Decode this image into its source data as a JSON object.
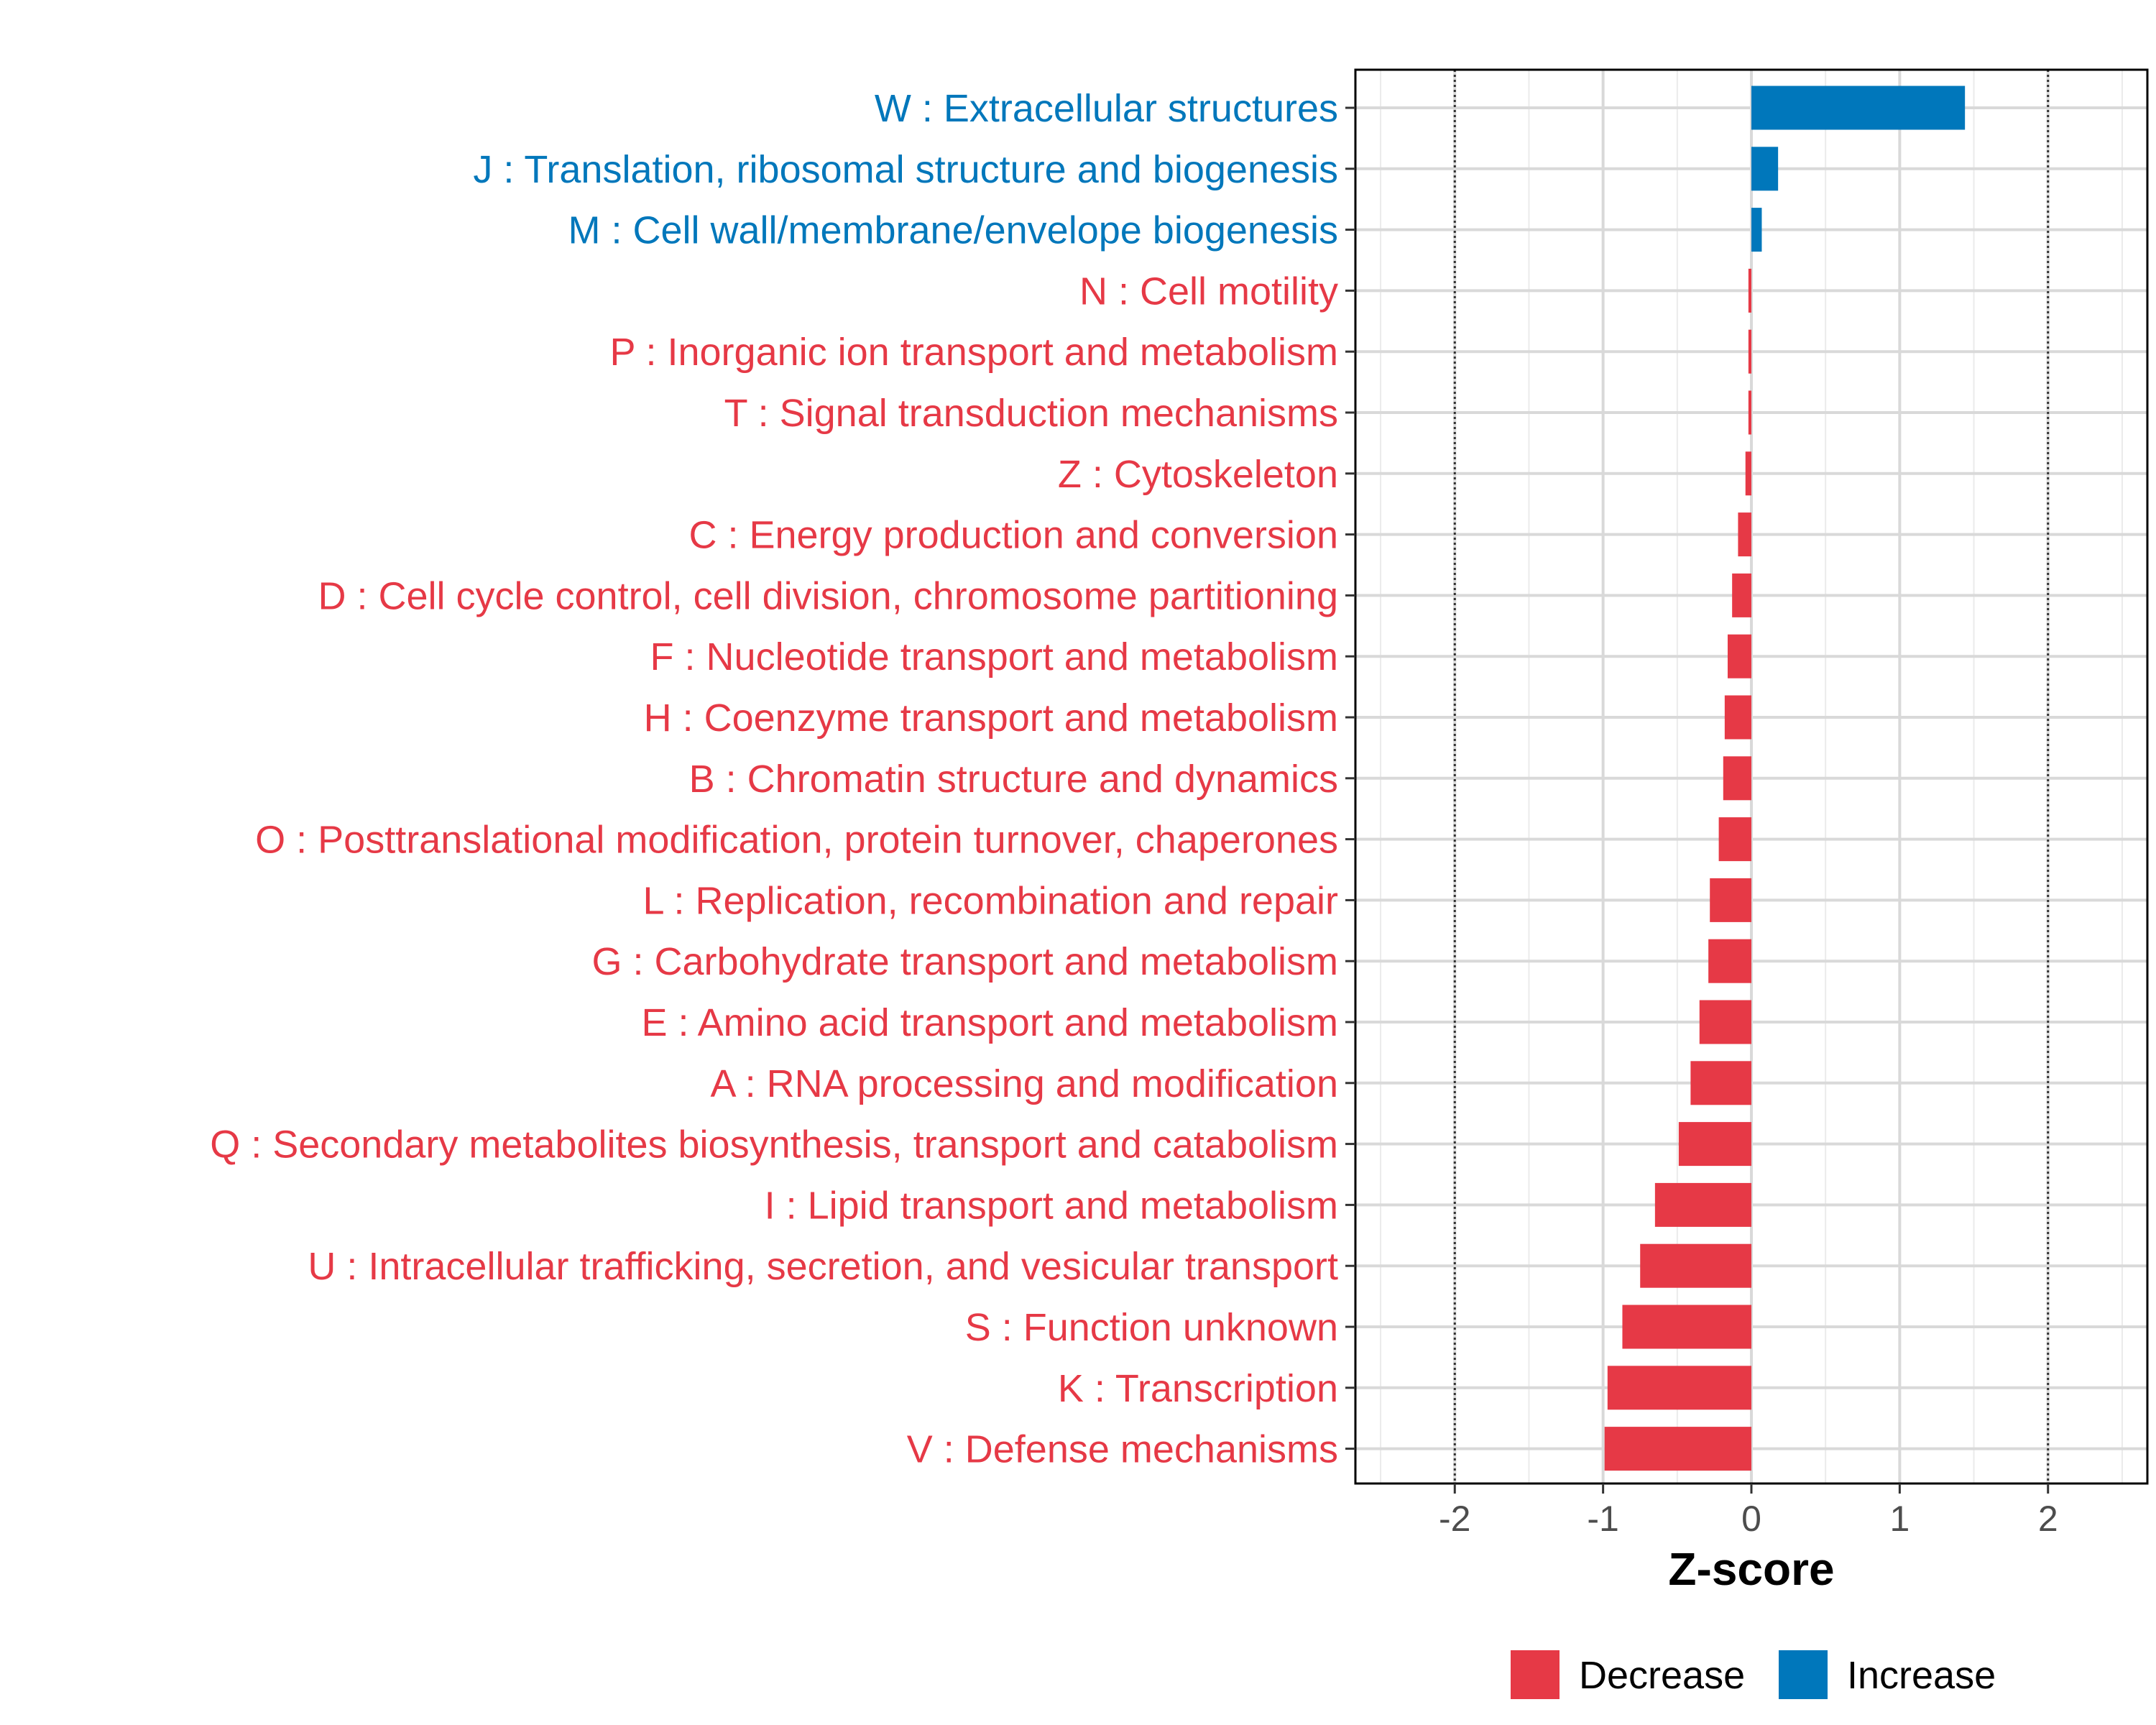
{
  "chart_data": {
    "type": "bar",
    "orientation": "horizontal",
    "title": "",
    "xlabel": "Z-score",
    "ylabel": "",
    "xlim": [
      -2.67,
      2.67
    ],
    "xticks": [
      -2,
      -1,
      0,
      1,
      2
    ],
    "xtick_labels": [
      "-2",
      "-1",
      "0",
      "1",
      "2"
    ],
    "reference_lines": [
      -2,
      2
    ],
    "grid": true,
    "legend_position": "bottom",
    "colors": {
      "Decrease": "#e63946",
      "Increase": "#0077bb"
    },
    "legend": [
      {
        "name": "Decrease",
        "color": "#e63946"
      },
      {
        "name": "Increase",
        "color": "#0077bb"
      }
    ],
    "categories": [
      "W : Extracellular structures",
      "J : Translation, ribosomal structure and biogenesis",
      "M : Cell wall/membrane/envelope biogenesis",
      "N : Cell motility",
      "P : Inorganic ion transport and metabolism",
      "T : Signal transduction mechanisms",
      "Z : Cytoskeleton",
      "C : Energy production and conversion",
      "D : Cell cycle control, cell division, chromosome partitioning",
      "F : Nucleotide transport and metabolism",
      "H : Coenzyme transport and metabolism",
      "B : Chromatin structure and dynamics",
      "O : Posttranslational modification, protein turnover, chaperones",
      "L : Replication, recombination and repair",
      "G : Carbohydrate transport and metabolism",
      "E : Amino acid transport and metabolism",
      "A : RNA processing and modification",
      "Q : Secondary metabolites biosynthesis, transport and catabolism",
      "I : Lipid transport and metabolism",
      "U : Intracellular trafficking, secretion, and vesicular transport",
      "S : Function unknown",
      "K : Transcription",
      "V : Defense mechanisms"
    ],
    "values": [
      1.44,
      0.18,
      0.07,
      -0.02,
      -0.02,
      -0.02,
      -0.04,
      -0.09,
      -0.13,
      -0.16,
      -0.18,
      -0.19,
      -0.22,
      -0.28,
      -0.29,
      -0.35,
      -0.41,
      -0.49,
      -0.65,
      -0.75,
      -0.87,
      -0.97,
      -0.99
    ],
    "groups": [
      "Increase",
      "Increase",
      "Increase",
      "Decrease",
      "Decrease",
      "Decrease",
      "Decrease",
      "Decrease",
      "Decrease",
      "Decrease",
      "Decrease",
      "Decrease",
      "Decrease",
      "Decrease",
      "Decrease",
      "Decrease",
      "Decrease",
      "Decrease",
      "Decrease",
      "Decrease",
      "Decrease",
      "Decrease",
      "Decrease"
    ]
  }
}
